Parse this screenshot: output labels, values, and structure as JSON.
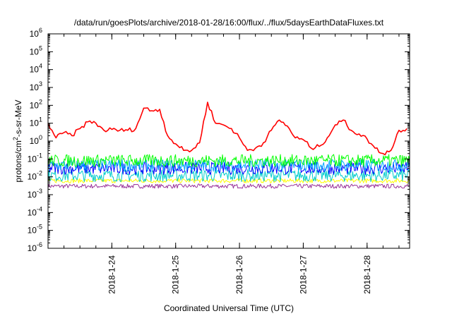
{
  "chart_data": {
    "type": "line",
    "title": "/data/run/goesPlots/archive/2018-01-28/16:00/flux/../flux/5daysEarthDataFluxes.txt",
    "xlabel": "Coordinated Universal Time (UTC)",
    "ylabel": {
      "base": "protons/cm",
      "sup": "2",
      "rest": "-s-sr-MeV"
    },
    "y_scale": "log",
    "ylim": [
      1e-06,
      1000000.0
    ],
    "y_ticks": [
      {
        "base": "10",
        "exp": "-6",
        "value": -6
      },
      {
        "base": "10",
        "exp": "-5",
        "value": -5
      },
      {
        "base": "10",
        "exp": "-4",
        "value": -4
      },
      {
        "base": "10",
        "exp": "-3",
        "value": -3
      },
      {
        "base": "10",
        "exp": "-2",
        "value": -2
      },
      {
        "base": "10",
        "exp": "-1",
        "value": -1
      },
      {
        "base": "10",
        "exp": "0",
        "value": 0
      },
      {
        "base": "10",
        "exp": "1",
        "value": 1
      },
      {
        "base": "10",
        "exp": "2",
        "value": 2
      },
      {
        "base": "10",
        "exp": "3",
        "value": 3
      },
      {
        "base": "10",
        "exp": "4",
        "value": 4
      },
      {
        "base": "10",
        "exp": "5",
        "value": 5
      },
      {
        "base": "10",
        "exp": "6",
        "value": 6
      }
    ],
    "xlim": [
      "2018-01-23 00:00",
      "2018-01-28 16:00"
    ],
    "x_ticks": [
      "2018-1-24",
      "2018-1-25",
      "2018-1-26",
      "2018-1-27",
      "2018-1-28"
    ],
    "grid": false,
    "series": [
      {
        "color": "#ff0000",
        "x": [
          "2018-01-23 00:00",
          "2018-01-23 03:00",
          "2018-01-23 06:00",
          "2018-01-23 09:00",
          "2018-01-23 12:00",
          "2018-01-23 15:00",
          "2018-01-23 18:00",
          "2018-01-23 21:00",
          "2018-01-24 00:00",
          "2018-01-24 03:00",
          "2018-01-24 06:00",
          "2018-01-24 09:00",
          "2018-01-24 12:00",
          "2018-01-24 15:00",
          "2018-01-24 18:00",
          "2018-01-24 21:00",
          "2018-01-25 00:00",
          "2018-01-25 03:00",
          "2018-01-25 06:00",
          "2018-01-25 09:00",
          "2018-01-25 12:00",
          "2018-01-25 15:00",
          "2018-01-25 18:00",
          "2018-01-25 21:00",
          "2018-01-26 00:00",
          "2018-01-26 03:00",
          "2018-01-26 06:00",
          "2018-01-26 09:00",
          "2018-01-26 12:00",
          "2018-01-26 15:00",
          "2018-01-26 18:00",
          "2018-01-26 21:00",
          "2018-01-27 00:00",
          "2018-01-27 03:00",
          "2018-01-27 06:00",
          "2018-01-27 09:00",
          "2018-01-27 12:00",
          "2018-01-27 15:00",
          "2018-01-27 18:00",
          "2018-01-27 21:00",
          "2018-01-28 00:00",
          "2018-01-28 03:00",
          "2018-01-28 06:00",
          "2018-01-28 09:00",
          "2018-01-28 12:00",
          "2018-01-28 15:00"
        ],
        "y": [
          10,
          1.5,
          3,
          2,
          5,
          12,
          10,
          4,
          4.5,
          4,
          4,
          5,
          70,
          50,
          60,
          2,
          0.7,
          0.3,
          0.3,
          0.8,
          150,
          10,
          8,
          5,
          1.5,
          0.3,
          0.4,
          0.8,
          4,
          15,
          7,
          1.5,
          1.2,
          0.4,
          0.5,
          1.5,
          8,
          15,
          4,
          2.5,
          1.3,
          0.4,
          0.2,
          0.3,
          4,
          5
        ]
      },
      {
        "color": "#00ff00",
        "x": [
          "2018-01-23 00:00",
          "2018-01-28 16:00"
        ],
        "y": [
          0.08,
          0.08
        ]
      },
      {
        "color": "#00aaff",
        "x": [
          "2018-01-23 00:00",
          "2018-01-28 16:00"
        ],
        "y": [
          0.045,
          0.045
        ]
      },
      {
        "color": "#0000ff",
        "x": [
          "2018-01-23 00:00",
          "2018-01-28 16:00"
        ],
        "y": [
          0.03,
          0.03
        ]
      },
      {
        "color": "#00cccc",
        "x": [
          "2018-01-23 00:00",
          "2018-01-28 16:00"
        ],
        "y": [
          0.012,
          0.012
        ]
      },
      {
        "color": "#ffff00",
        "x": [
          "2018-01-23 00:00",
          "2018-01-28 16:00"
        ],
        "y": [
          0.006,
          0.006
        ]
      },
      {
        "color": "#993399",
        "x": [
          "2018-01-23 00:00",
          "2018-01-28 16:00"
        ],
        "y": [
          0.003,
          0.003
        ]
      }
    ]
  }
}
